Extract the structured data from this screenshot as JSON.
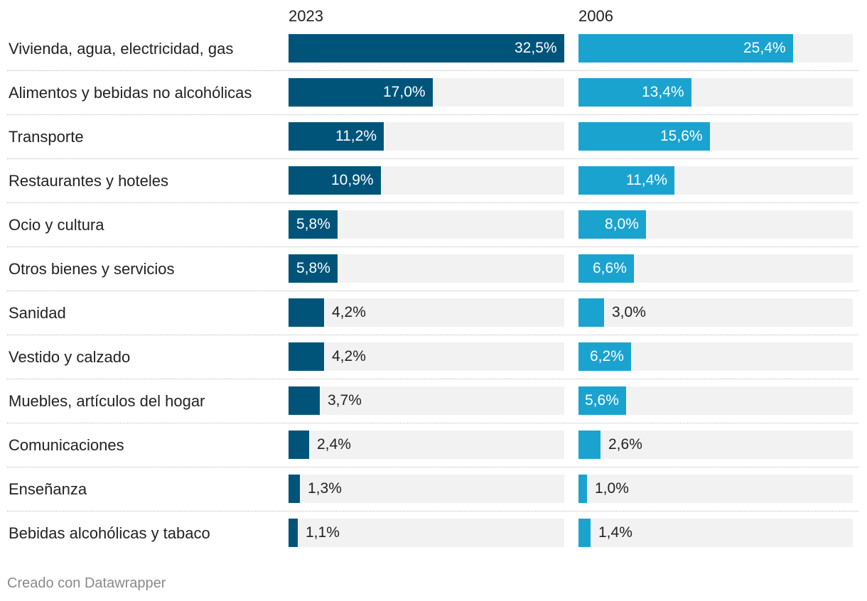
{
  "chart_data": {
    "type": "bar",
    "orientation": "horizontal",
    "value_suffix": "%",
    "colors": {
      "series_2023": "#00547a",
      "series_2006": "#1ba3d0",
      "track": "#f2f2f2"
    },
    "categories": [
      "Vivienda, agua, electricidad, gas",
      "Alimentos y bebidas no alcohólicas",
      "Transporte",
      "Restaurantes y hoteles",
      "Ocio y cultura",
      "Otros bienes y servicios",
      "Sanidad",
      "Vestido y calzado",
      "Muebles, artículos del hogar",
      "Comunicaciones",
      "Enseñanza",
      "Bebidas alcohólicas y tabaco"
    ],
    "series": [
      {
        "name": "2023",
        "values": [
          32.5,
          17.0,
          11.2,
          10.9,
          5.8,
          5.8,
          4.2,
          4.2,
          3.7,
          2.4,
          1.3,
          1.1
        ],
        "labels": [
          "32,5%",
          "17,0%",
          "11,2%",
          "10,9%",
          "5,8%",
          "5,8%",
          "4,2%",
          "4,2%",
          "3,7%",
          "2,4%",
          "1,3%",
          "1,1%"
        ],
        "xlim": [
          0,
          32.5
        ]
      },
      {
        "name": "2006",
        "values": [
          25.4,
          13.4,
          15.6,
          11.4,
          8.0,
          6.6,
          3.0,
          6.2,
          5.6,
          2.6,
          1.0,
          1.4
        ],
        "labels": [
          "25,4%",
          "13,4%",
          "15,6%",
          "11,4%",
          "8,0%",
          "6,6%",
          "3,0%",
          "6,2%",
          "5,6%",
          "2,6%",
          "1,0%",
          "1,4%"
        ],
        "xlim": [
          0,
          32.5
        ]
      }
    ]
  },
  "footer": {
    "credit": "Creado con Datawrapper"
  }
}
